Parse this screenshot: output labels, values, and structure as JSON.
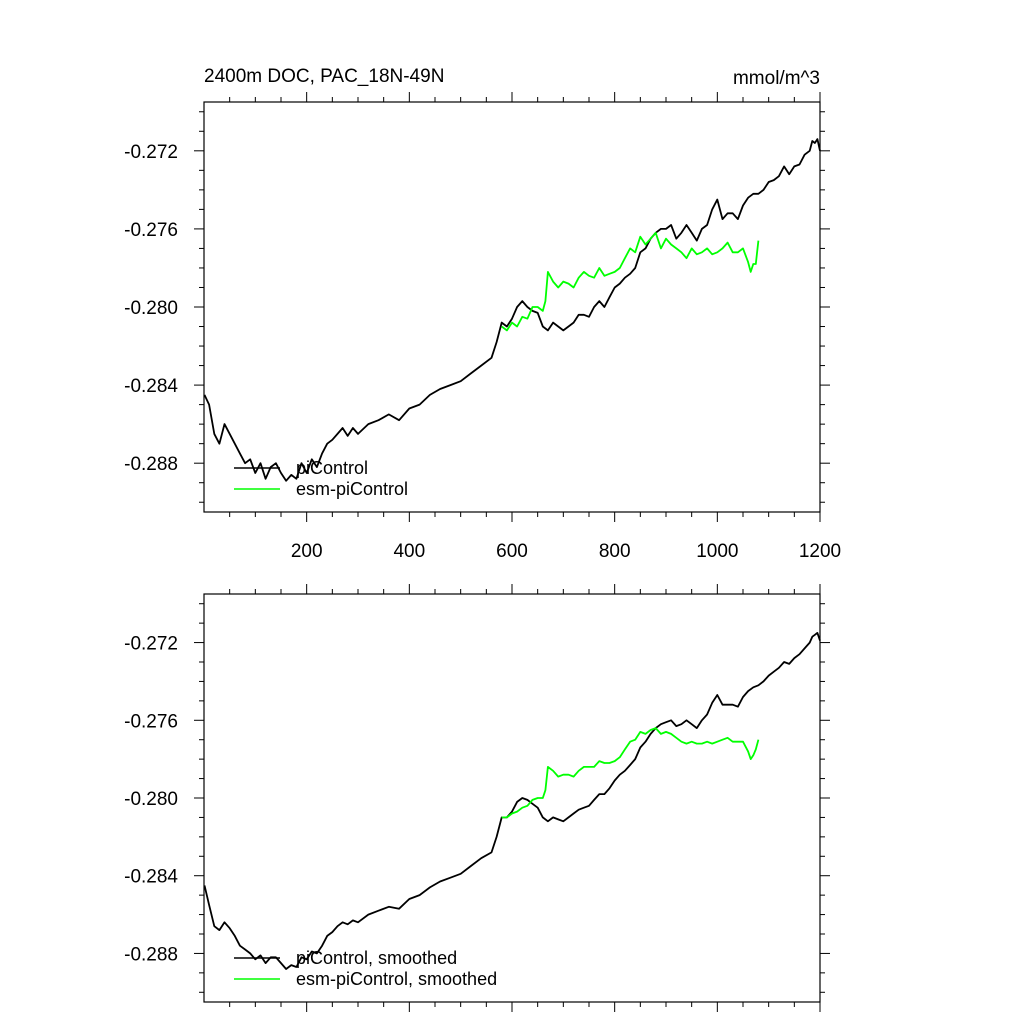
{
  "figure": {
    "title_left": "2400m DOC, PAC_18N-49N",
    "title_right": "mmol/m^3"
  },
  "chart_data": [
    {
      "type": "line",
      "title": "2400m DOC, PAC_18N-49N",
      "units": "mmol/m^3",
      "xlim": [
        0,
        1200
      ],
      "ylim": [
        -0.2905,
        -0.2695
      ],
      "xticks": [
        200,
        400,
        600,
        800,
        1000,
        1200
      ],
      "xtick_labels": [
        "200",
        "400",
        "600",
        "800",
        "1000",
        "1200"
      ],
      "yticks": [
        -0.288,
        -0.284,
        -0.28,
        -0.276,
        -0.272
      ],
      "ytick_labels": [
        "-0.288",
        "-0.284",
        "-0.280",
        "-0.276",
        "-0.272"
      ],
      "grid": false,
      "legend": "bottom-left",
      "series": [
        {
          "name": "piControl",
          "color": "#000000",
          "x": [
            1,
            10,
            20,
            30,
            40,
            50,
            60,
            70,
            80,
            90,
            100,
            110,
            120,
            130,
            140,
            150,
            160,
            170,
            180,
            190,
            200,
            210,
            220,
            230,
            240,
            250,
            260,
            270,
            280,
            290,
            300,
            320,
            340,
            360,
            380,
            400,
            420,
            440,
            460,
            480,
            500,
            520,
            540,
            560,
            570,
            580,
            590,
            600,
            610,
            620,
            630,
            640,
            650,
            660,
            670,
            680,
            690,
            700,
            710,
            720,
            730,
            740,
            750,
            760,
            770,
            780,
            790,
            800,
            810,
            820,
            830,
            840,
            850,
            860,
            870,
            880,
            890,
            900,
            910,
            920,
            930,
            940,
            950,
            960,
            970,
            980,
            990,
            1000,
            1010,
            1020,
            1030,
            1040,
            1050,
            1060,
            1070,
            1080,
            1090,
            1100,
            1110,
            1120,
            1130,
            1140,
            1150,
            1160,
            1170,
            1180,
            1185,
            1190,
            1195,
            1200
          ],
          "y": [
            -0.2845,
            -0.285,
            -0.2865,
            -0.287,
            -0.286,
            -0.2865,
            -0.287,
            -0.2875,
            -0.288,
            -0.2878,
            -0.2885,
            -0.288,
            -0.2888,
            -0.2882,
            -0.288,
            -0.2885,
            -0.2889,
            -0.2886,
            -0.2888,
            -0.288,
            -0.2885,
            -0.2878,
            -0.2882,
            -0.2875,
            -0.287,
            -0.2868,
            -0.2865,
            -0.2862,
            -0.2866,
            -0.2862,
            -0.2865,
            -0.286,
            -0.2858,
            -0.2855,
            -0.2858,
            -0.2852,
            -0.285,
            -0.2845,
            -0.2842,
            -0.284,
            -0.2838,
            -0.2834,
            -0.283,
            -0.2826,
            -0.2818,
            -0.2808,
            -0.281,
            -0.2806,
            -0.28,
            -0.2797,
            -0.28,
            -0.2802,
            -0.2803,
            -0.281,
            -0.2812,
            -0.2808,
            -0.281,
            -0.2812,
            -0.281,
            -0.2808,
            -0.2804,
            -0.2804,
            -0.2805,
            -0.28,
            -0.2797,
            -0.28,
            -0.2795,
            -0.279,
            -0.2788,
            -0.2785,
            -0.2783,
            -0.278,
            -0.2772,
            -0.277,
            -0.2765,
            -0.2762,
            -0.276,
            -0.276,
            -0.2758,
            -0.2765,
            -0.2762,
            -0.2758,
            -0.2762,
            -0.2766,
            -0.276,
            -0.2758,
            -0.275,
            -0.2745,
            -0.2755,
            -0.2752,
            -0.2752,
            -0.2755,
            -0.2748,
            -0.2744,
            -0.2742,
            -0.2742,
            -0.274,
            -0.2736,
            -0.2735,
            -0.2733,
            -0.2728,
            -0.2732,
            -0.2728,
            -0.2727,
            -0.2722,
            -0.272,
            -0.2715,
            -0.2716,
            -0.2714,
            -0.272
          ]
        },
        {
          "name": "esm-piControl",
          "color": "#00ff00",
          "x": [
            580,
            590,
            600,
            610,
            620,
            630,
            640,
            650,
            660,
            665,
            670,
            680,
            690,
            700,
            710,
            720,
            730,
            740,
            750,
            760,
            770,
            780,
            790,
            800,
            810,
            820,
            830,
            840,
            850,
            860,
            870,
            880,
            890,
            900,
            910,
            920,
            930,
            940,
            950,
            960,
            970,
            980,
            990,
            1000,
            1010,
            1020,
            1030,
            1040,
            1050,
            1060,
            1065,
            1070,
            1075,
            1080
          ],
          "y": [
            -0.281,
            -0.2812,
            -0.2808,
            -0.281,
            -0.2805,
            -0.2806,
            -0.28,
            -0.28,
            -0.2802,
            -0.2797,
            -0.2782,
            -0.2787,
            -0.279,
            -0.2787,
            -0.2788,
            -0.279,
            -0.2785,
            -0.2782,
            -0.2784,
            -0.2785,
            -0.278,
            -0.2784,
            -0.2783,
            -0.2782,
            -0.278,
            -0.2775,
            -0.277,
            -0.2772,
            -0.2764,
            -0.2768,
            -0.2765,
            -0.2762,
            -0.277,
            -0.2765,
            -0.2768,
            -0.277,
            -0.2772,
            -0.2775,
            -0.277,
            -0.2773,
            -0.2772,
            -0.277,
            -0.2773,
            -0.2772,
            -0.277,
            -0.2767,
            -0.2772,
            -0.2772,
            -0.277,
            -0.2777,
            -0.2782,
            -0.2778,
            -0.2778,
            -0.2766
          ]
        }
      ]
    },
    {
      "type": "line",
      "xlim": [
        0,
        1200
      ],
      "ylim": [
        -0.2905,
        -0.2695
      ],
      "xticks": [
        200,
        400,
        600,
        800,
        1000,
        1200
      ],
      "xtick_labels": [],
      "yticks": [
        -0.288,
        -0.284,
        -0.28,
        -0.276,
        -0.272
      ],
      "ytick_labels": [
        "-0.288",
        "-0.284",
        "-0.280",
        "-0.276",
        "-0.272"
      ],
      "grid": false,
      "legend": "bottom-left",
      "series": [
        {
          "name": "piControl, smoothed",
          "color": "#000000",
          "x": [
            1,
            10,
            20,
            30,
            40,
            50,
            60,
            70,
            80,
            90,
            100,
            110,
            120,
            130,
            140,
            150,
            160,
            170,
            180,
            190,
            200,
            210,
            220,
            230,
            240,
            250,
            260,
            270,
            280,
            290,
            300,
            320,
            340,
            360,
            380,
            400,
            420,
            440,
            460,
            480,
            500,
            520,
            540,
            560,
            570,
            580,
            590,
            600,
            610,
            620,
            630,
            640,
            650,
            660,
            670,
            680,
            690,
            700,
            710,
            720,
            730,
            740,
            750,
            760,
            770,
            780,
            790,
            800,
            810,
            820,
            830,
            840,
            850,
            860,
            870,
            880,
            890,
            900,
            910,
            920,
            930,
            940,
            950,
            960,
            970,
            980,
            990,
            1000,
            1010,
            1020,
            1030,
            1040,
            1050,
            1060,
            1070,
            1080,
            1090,
            1100,
            1110,
            1120,
            1130,
            1140,
            1150,
            1160,
            1170,
            1180,
            1185,
            1190,
            1195,
            1200
          ],
          "y": [
            -0.2845,
            -0.2855,
            -0.2866,
            -0.2868,
            -0.2864,
            -0.2867,
            -0.2871,
            -0.2876,
            -0.2878,
            -0.288,
            -0.2883,
            -0.2881,
            -0.2885,
            -0.2882,
            -0.2882,
            -0.2885,
            -0.2888,
            -0.2886,
            -0.2887,
            -0.2882,
            -0.2883,
            -0.2879,
            -0.288,
            -0.2876,
            -0.2871,
            -0.2869,
            -0.2866,
            -0.2864,
            -0.2865,
            -0.2863,
            -0.2864,
            -0.286,
            -0.2858,
            -0.2856,
            -0.2857,
            -0.2852,
            -0.285,
            -0.2846,
            -0.2843,
            -0.2841,
            -0.2839,
            -0.2835,
            -0.2831,
            -0.2828,
            -0.282,
            -0.281,
            -0.281,
            -0.2807,
            -0.2802,
            -0.28,
            -0.2801,
            -0.2803,
            -0.2805,
            -0.281,
            -0.2812,
            -0.281,
            -0.2811,
            -0.2812,
            -0.281,
            -0.2808,
            -0.2806,
            -0.2805,
            -0.2804,
            -0.2801,
            -0.2798,
            -0.2798,
            -0.2795,
            -0.2791,
            -0.2788,
            -0.2786,
            -0.2783,
            -0.278,
            -0.2774,
            -0.2771,
            -0.2767,
            -0.2764,
            -0.2762,
            -0.2761,
            -0.276,
            -0.2763,
            -0.2762,
            -0.276,
            -0.2762,
            -0.2764,
            -0.276,
            -0.2757,
            -0.2751,
            -0.2747,
            -0.2752,
            -0.2752,
            -0.2752,
            -0.2753,
            -0.2748,
            -0.2745,
            -0.2743,
            -0.2742,
            -0.274,
            -0.2737,
            -0.2735,
            -0.2733,
            -0.273,
            -0.2731,
            -0.2728,
            -0.2726,
            -0.2723,
            -0.272,
            -0.2717,
            -0.2716,
            -0.2715,
            -0.2719
          ]
        },
        {
          "name": "esm-piControl, smoothed",
          "color": "#00ff00",
          "x": [
            580,
            590,
            600,
            610,
            620,
            630,
            640,
            650,
            660,
            665,
            670,
            680,
            690,
            700,
            710,
            720,
            730,
            740,
            750,
            760,
            770,
            780,
            790,
            800,
            810,
            820,
            830,
            840,
            850,
            860,
            870,
            880,
            890,
            900,
            910,
            920,
            930,
            940,
            950,
            960,
            970,
            980,
            990,
            1000,
            1010,
            1020,
            1030,
            1040,
            1050,
            1060,
            1065,
            1070,
            1075,
            1080
          ],
          "y": [
            -0.281,
            -0.281,
            -0.2808,
            -0.2807,
            -0.2805,
            -0.2804,
            -0.2801,
            -0.28,
            -0.28,
            -0.2796,
            -0.2784,
            -0.2786,
            -0.2789,
            -0.2788,
            -0.2788,
            -0.2789,
            -0.2786,
            -0.2784,
            -0.2784,
            -0.2784,
            -0.2781,
            -0.2782,
            -0.2782,
            -0.2781,
            -0.2779,
            -0.2775,
            -0.2771,
            -0.277,
            -0.2766,
            -0.2767,
            -0.2765,
            -0.2764,
            -0.2767,
            -0.2766,
            -0.2767,
            -0.2769,
            -0.2771,
            -0.2772,
            -0.2771,
            -0.2772,
            -0.2772,
            -0.2771,
            -0.2772,
            -0.2771,
            -0.277,
            -0.2769,
            -0.2771,
            -0.2771,
            -0.2771,
            -0.2776,
            -0.278,
            -0.2778,
            -0.2775,
            -0.277
          ]
        }
      ]
    }
  ]
}
